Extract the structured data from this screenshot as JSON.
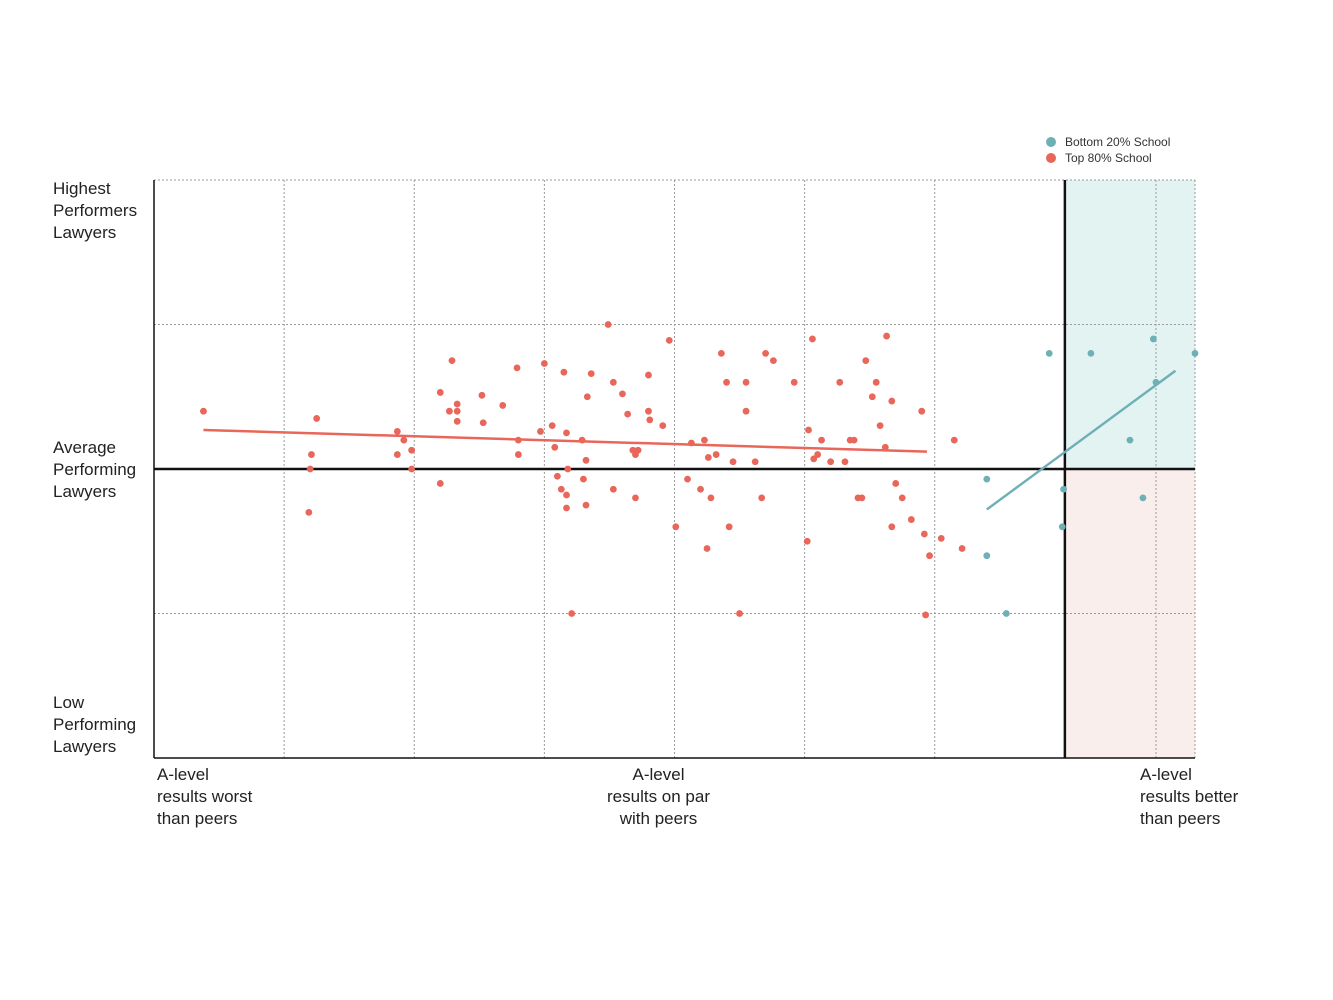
{
  "chart_data": {
    "type": "scatter",
    "xlim": [
      -3.5,
      4.5
    ],
    "ylim": [
      -2,
      2
    ],
    "grid": true,
    "legend_position": "top-right",
    "y_labels": {
      "high": "Highest\nPerformers\nLawyers",
      "mid": "Average\nPerforming\nLawyers",
      "low": "Low\nPerforming\nLawyers"
    },
    "x_labels": {
      "left": "A-level\nresults worst\nthan peers",
      "mid": "A-level\nresults on par\nwith peers",
      "right": "A-level\nresults better\nthan peers"
    },
    "quadrants": {
      "upper_right": "#e3f3f2",
      "lower_right": "#f9eeec"
    },
    "series": [
      {
        "name": "Top 80% School",
        "color": "#e8665a",
        "trend": [
          [
            -3.12,
            0.27
          ],
          [
            2.44,
            0.12
          ]
        ],
        "points": [
          [
            -3.12,
            0.4
          ],
          [
            -2.25,
            0.35
          ],
          [
            -2.29,
            0.1
          ],
          [
            -2.3,
            0.0
          ],
          [
            -2.31,
            -0.3
          ],
          [
            -1.63,
            0.26
          ],
          [
            -1.58,
            0.2
          ],
          [
            -1.52,
            0.13
          ],
          [
            -1.63,
            0.1
          ],
          [
            -1.52,
            0.0
          ],
          [
            -1.3,
            0.53
          ],
          [
            -1.3,
            -0.1
          ],
          [
            -1.21,
            0.75
          ],
          [
            -1.23,
            0.4
          ],
          [
            -1.17,
            0.45
          ],
          [
            -1.17,
            0.4
          ],
          [
            -1.17,
            0.33
          ],
          [
            -0.98,
            0.51
          ],
          [
            -0.97,
            0.32
          ],
          [
            -0.82,
            0.44
          ],
          [
            -0.71,
            0.7
          ],
          [
            -0.7,
            0.2
          ],
          [
            -0.7,
            0.1
          ],
          [
            -0.53,
            0.26
          ],
          [
            -0.5,
            0.73
          ],
          [
            -0.44,
            0.3
          ],
          [
            -0.42,
            0.15
          ],
          [
            -0.4,
            -0.05
          ],
          [
            -0.37,
            -0.14
          ],
          [
            -0.35,
            0.67
          ],
          [
            -0.33,
            0.25
          ],
          [
            -0.33,
            -0.18
          ],
          [
            -0.32,
            0.0
          ],
          [
            -0.33,
            -0.27
          ],
          [
            -0.29,
            -1.0
          ],
          [
            -0.21,
            0.2
          ],
          [
            -0.2,
            -0.07
          ],
          [
            -0.18,
            -0.25
          ],
          [
            -0.18,
            0.06
          ],
          [
            -0.17,
            0.5
          ],
          [
            -0.14,
            0.66
          ],
          [
            -0.01,
            1.0
          ],
          [
            0.03,
            0.6
          ],
          [
            0.03,
            -0.14
          ],
          [
            0.1,
            0.52
          ],
          [
            0.14,
            0.38
          ],
          [
            0.18,
            0.13
          ],
          [
            0.2,
            0.1
          ],
          [
            0.22,
            0.13
          ],
          [
            0.3,
            0.65
          ],
          [
            0.3,
            0.4
          ],
          [
            0.31,
            0.34
          ],
          [
            0.2,
            -0.2
          ],
          [
            0.46,
            0.89
          ],
          [
            0.41,
            0.3
          ],
          [
            0.63,
            0.18
          ],
          [
            0.73,
            0.2
          ],
          [
            0.76,
            0.08
          ],
          [
            0.6,
            -0.07
          ],
          [
            0.7,
            -0.14
          ],
          [
            0.51,
            -0.4
          ],
          [
            0.78,
            -0.2
          ],
          [
            0.82,
            0.1
          ],
          [
            0.86,
            0.8
          ],
          [
            0.9,
            0.6
          ],
          [
            0.95,
            0.05
          ],
          [
            0.92,
            -0.4
          ],
          [
            1.05,
            0.6
          ],
          [
            1.05,
            0.4
          ],
          [
            1.12,
            0.05
          ],
          [
            1.17,
            -0.2
          ],
          [
            1.26,
            0.75
          ],
          [
            1.2,
            0.8
          ],
          [
            1.42,
            0.6
          ],
          [
            1.52,
            -0.5
          ],
          [
            1.56,
            0.9
          ],
          [
            1.53,
            0.27
          ],
          [
            1.57,
            0.07
          ],
          [
            1.6,
            0.1
          ],
          [
            1.63,
            0.2
          ],
          [
            1.7,
            0.05
          ],
          [
            1.77,
            0.6
          ],
          [
            1.81,
            0.05
          ],
          [
            1.85,
            0.2
          ],
          [
            1.88,
            0.2
          ],
          [
            1.91,
            -0.2
          ],
          [
            1.97,
            0.75
          ],
          [
            2.02,
            0.5
          ],
          [
            2.05,
            0.6
          ],
          [
            2.08,
            0.3
          ],
          [
            2.12,
            0.15
          ],
          [
            2.13,
            0.92
          ],
          [
            2.17,
            0.47
          ],
          [
            2.17,
            -0.4
          ],
          [
            2.2,
            -0.1
          ],
          [
            2.25,
            -0.2
          ],
          [
            2.32,
            -0.35
          ],
          [
            2.4,
            0.4
          ],
          [
            2.42,
            -0.45
          ],
          [
            2.43,
            -1.01
          ],
          [
            2.46,
            -0.6
          ],
          [
            2.55,
            -0.48
          ],
          [
            2.65,
            0.2
          ],
          [
            2.71,
            -0.55
          ],
          [
            0.75,
            -0.55
          ],
          [
            1.0,
            -1.0
          ],
          [
            1.94,
            -0.2
          ]
        ]
      },
      {
        "name": "Bottom  20% School",
        "color": "#6fb0b7",
        "trend": [
          [
            2.9,
            -0.28
          ],
          [
            4.35,
            0.68
          ]
        ],
        "points": [
          [
            2.9,
            -0.07
          ],
          [
            2.9,
            -0.6
          ],
          [
            3.05,
            -1.0
          ],
          [
            3.38,
            0.8
          ],
          [
            3.7,
            0.8
          ],
          [
            4.0,
            0.2
          ],
          [
            4.5,
            0.8
          ],
          [
            4.2,
            0.6
          ],
          [
            4.18,
            0.9
          ],
          [
            4.1,
            -0.2
          ],
          [
            3.49,
            -0.14
          ],
          [
            3.48,
            -0.4
          ]
        ]
      }
    ]
  }
}
